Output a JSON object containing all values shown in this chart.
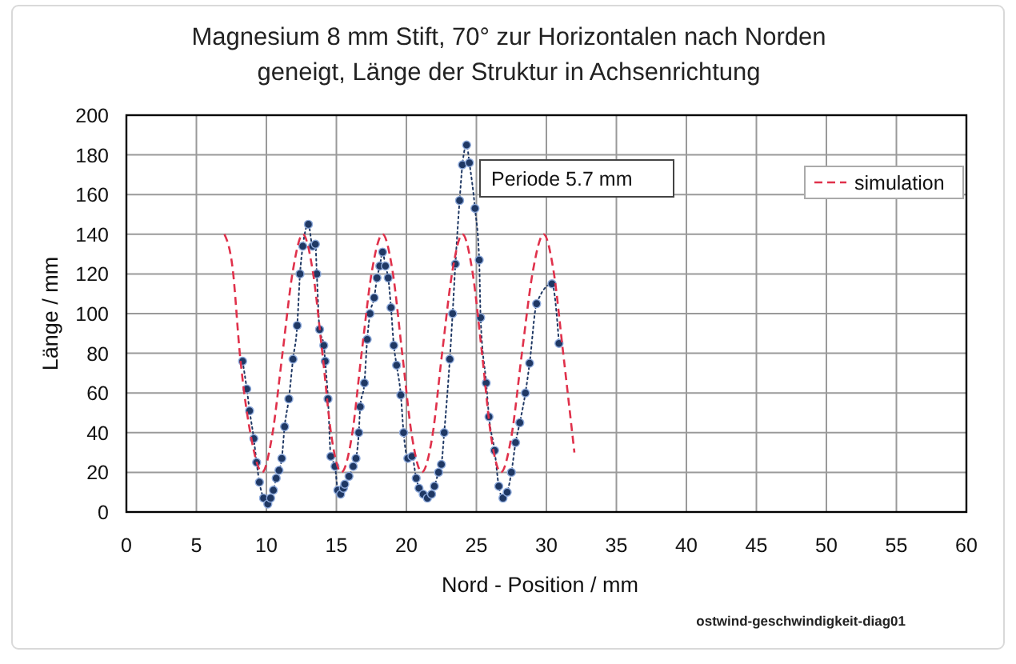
{
  "chart_data": {
    "type": "line",
    "title": "Magnesium 8 mm Stift, 70° zur Horizontalen nach Norden geneigt, Länge der Struktur in Achsenrichtung",
    "xlabel": "Nord - Position / mm",
    "ylabel": "Länge / mm",
    "xlim": [
      0,
      60
    ],
    "xticks": [
      0,
      5,
      10,
      15,
      20,
      25,
      30,
      35,
      40,
      45,
      50,
      55,
      60
    ],
    "ylim": [
      0,
      200
    ],
    "yticks": [
      0,
      20,
      40,
      60,
      80,
      100,
      120,
      140,
      160,
      180,
      200
    ],
    "grid": true,
    "legend": "top right",
    "annotations": [
      "Periode 5.7 mm",
      "ostwind-geschwindigkeit-diag01"
    ],
    "series": [
      {
        "color": "#1f3864",
        "marker": "circle",
        "line_style": "dotted",
        "x": [
          8.3,
          8.6,
          8.8,
          9.1,
          9.3,
          9.5,
          9.8,
          10.1,
          10.3,
          10.5,
          10.7,
          10.9,
          11.1,
          11.3,
          11.6,
          11.9,
          12.2,
          12.4,
          12.6,
          13.0,
          13.3,
          13.5,
          13.6,
          13.8,
          14.1,
          14.2,
          14.4,
          14.6,
          14.9,
          15.1,
          15.3,
          15.5,
          15.6,
          15.9,
          16.2,
          16.4,
          16.6,
          16.7,
          17.0,
          17.2,
          17.4,
          17.7,
          17.9,
          18.1,
          18.3,
          18.5,
          18.7,
          18.9,
          19.1,
          19.3,
          19.6,
          19.8,
          20.1,
          20.4,
          20.7,
          20.9,
          21.2,
          21.5,
          21.8,
          22.0,
          22.3,
          22.5,
          22.7,
          23.1,
          23.3,
          23.5,
          23.8,
          24.0,
          24.3,
          24.5,
          24.9,
          25.2,
          25.3,
          25.7,
          25.9,
          26.3,
          26.6,
          26.9,
          27.2,
          27.5,
          27.8,
          28.1,
          28.5,
          28.8,
          29.3,
          30.4,
          30.9
        ],
        "values": [
          76,
          62,
          51,
          37,
          25,
          15,
          7,
          4,
          7,
          11,
          17,
          21,
          27,
          43,
          57,
          77,
          94,
          120,
          134,
          145,
          134,
          135,
          120,
          92,
          84,
          76,
          57,
          28,
          23,
          11,
          9,
          12,
          14,
          18,
          23,
          27,
          40,
          53,
          65,
          87,
          100,
          108,
          118,
          124,
          131,
          124,
          118,
          103,
          84,
          74,
          59,
          40,
          27,
          28,
          17,
          12,
          9,
          7,
          9,
          13,
          20,
          24,
          40,
          77,
          100,
          125,
          157,
          175,
          185,
          176,
          153,
          127,
          98,
          65,
          48,
          31,
          13,
          7,
          10,
          20,
          35,
          45,
          60,
          75,
          105,
          115,
          85
        ]
      },
      {
        "name": "simulation",
        "color": "#e0314b",
        "marker": "none",
        "line_style": "dashed",
        "x": [
          7.0,
          7.6,
          8.1,
          8.9,
          9.7,
          10.4,
          11.15,
          11.9,
          12.6,
          13.3,
          14.0,
          14.65,
          15.35,
          16.1,
          16.8,
          17.55,
          18.3,
          19.0,
          19.7,
          20.4,
          21.1,
          21.85,
          22.55,
          23.3,
          24.0,
          24.7,
          25.4,
          26.05,
          26.75,
          27.5,
          28.25,
          29.05,
          29.8,
          30.5,
          31.2,
          32.0
        ],
        "values": [
          140,
          122,
          80,
          38,
          20,
          38,
          80,
          122,
          140,
          122,
          80,
          38,
          20,
          38,
          80,
          122,
          140,
          122,
          80,
          38,
          20,
          38,
          80,
          122,
          140,
          122,
          80,
          38,
          20,
          38,
          80,
          122,
          140,
          122,
          80,
          30
        ]
      }
    ]
  }
}
